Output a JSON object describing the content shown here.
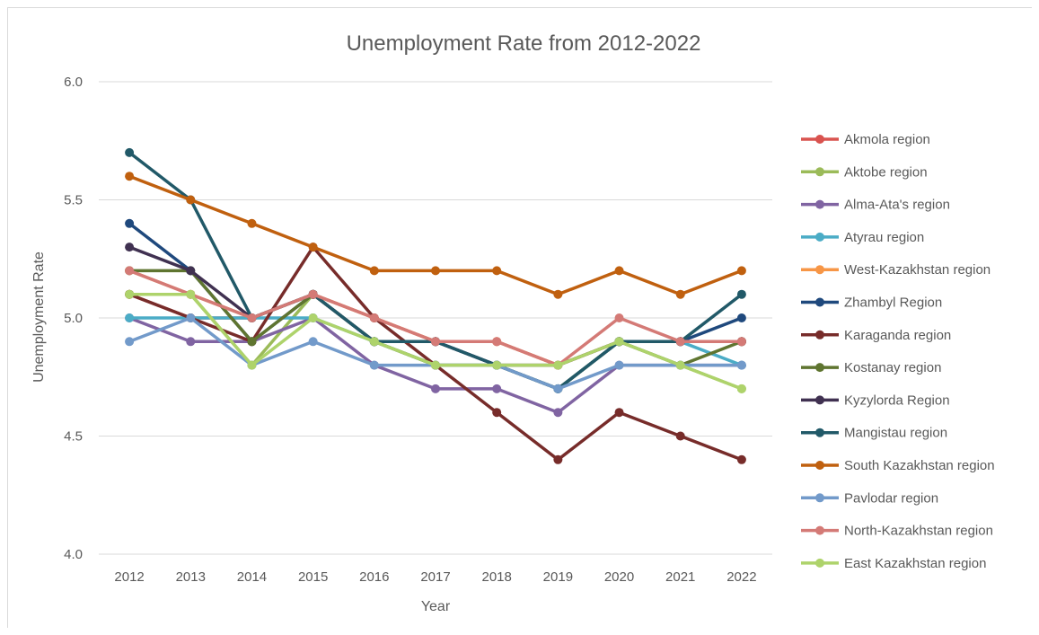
{
  "chart_data": {
    "type": "line",
    "title": "Unemployment  Rate from 2012-2022",
    "xlabel": "Year",
    "ylabel": "Unemployment Rate",
    "ylim": [
      4.0,
      6.0
    ],
    "yticks": [
      "4.0",
      "4.5",
      "5.0",
      "5.5",
      "6.0"
    ],
    "grid": true,
    "legend_position": "right",
    "categories": [
      "2012",
      "2013",
      "2014",
      "2015",
      "2016",
      "2017",
      "2018",
      "2019",
      "2020",
      "2021",
      "2022"
    ],
    "series": [
      {
        "name": "Akmola region",
        "color": "#d9534f",
        "values": [
          5.1,
          5.0,
          5.0,
          5.1,
          5.0,
          4.9,
          4.9,
          4.8,
          4.9,
          4.9,
          4.9
        ]
      },
      {
        "name": "Aktobe region",
        "color": "#9bbb59",
        "values": [
          5.1,
          5.1,
          4.8,
          5.1,
          4.9,
          4.8,
          4.8,
          4.8,
          4.9,
          4.8,
          4.7
        ]
      },
      {
        "name": "Alma-Ata's region",
        "color": "#8064a2",
        "values": [
          5.0,
          4.9,
          4.9,
          5.0,
          4.8,
          4.7,
          4.7,
          4.6,
          4.8,
          4.8,
          4.8
        ]
      },
      {
        "name": "Atyrau region",
        "color": "#4bacc6",
        "values": [
          5.0,
          5.0,
          5.0,
          5.0,
          4.9,
          4.8,
          4.8,
          4.7,
          4.9,
          4.9,
          4.8
        ]
      },
      {
        "name": "West-Kazakhstan region",
        "color": "#f79646",
        "values": [
          5.2,
          5.1,
          5.0,
          5.1,
          5.0,
          4.9,
          4.9,
          4.8,
          4.9,
          4.9,
          4.9
        ]
      },
      {
        "name": "Zhambyl Region",
        "color": "#1f497d",
        "values": [
          5.4,
          5.2,
          4.9,
          5.1,
          4.9,
          4.9,
          4.8,
          4.7,
          4.9,
          4.9,
          5.0
        ]
      },
      {
        "name": "Karaganda region",
        "color": "#772c2a",
        "values": [
          5.1,
          5.0,
          4.9,
          5.3,
          5.0,
          4.8,
          4.6,
          4.4,
          4.6,
          4.5,
          4.4
        ]
      },
      {
        "name": "Kostanay region",
        "color": "#5f7530",
        "values": [
          5.2,
          5.2,
          4.9,
          5.1,
          4.9,
          4.8,
          4.8,
          4.7,
          4.9,
          4.8,
          4.9
        ]
      },
      {
        "name": "Kyzylorda Region",
        "color": "#403151",
        "values": [
          5.3,
          5.2,
          5.0,
          5.1,
          4.9,
          4.9,
          4.8,
          4.8,
          4.9,
          4.9,
          4.9
        ]
      },
      {
        "name": "Mangistau region",
        "color": "#215968",
        "values": [
          5.7,
          5.5,
          5.0,
          5.1,
          4.9,
          4.9,
          4.8,
          4.7,
          4.9,
          4.9,
          5.1
        ]
      },
      {
        "name": "South Kazakhstan region",
        "color": "#c0600f",
        "values": [
          5.6,
          5.5,
          5.4,
          5.3,
          5.2,
          5.2,
          5.2,
          5.1,
          5.2,
          5.1,
          5.2
        ]
      },
      {
        "name": "Pavlodar region",
        "color": "#729aca",
        "values": [
          4.9,
          5.0,
          4.8,
          4.9,
          4.8,
          4.8,
          4.8,
          4.7,
          4.8,
          4.8,
          4.8
        ]
      },
      {
        "name": "North-Kazakhstan region",
        "color": "#d47a76",
        "values": [
          5.2,
          5.1,
          5.0,
          5.1,
          5.0,
          4.9,
          4.9,
          4.8,
          5.0,
          4.9,
          4.9
        ]
      },
      {
        "name": "East Kazakhstan region",
        "color": "#aed36b",
        "values": [
          5.1,
          5.1,
          4.8,
          5.0,
          4.9,
          4.8,
          4.8,
          4.8,
          4.9,
          4.8,
          4.7
        ]
      }
    ]
  }
}
